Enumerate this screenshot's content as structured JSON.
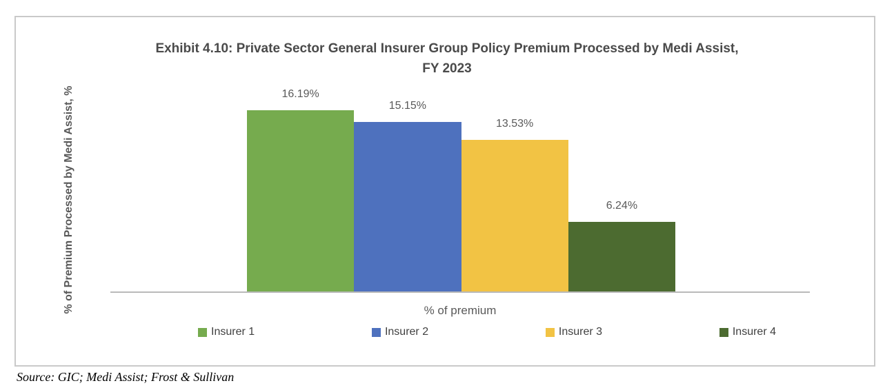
{
  "chart": {
    "title_line1": "Exhibit 4.10: Private Sector General Insurer Group Policy Premium Processed by Medi Assist,",
    "title_line2": "FY 2023",
    "y_axis_label": "% of Premium Processed by Medi Assist, %",
    "x_axis_label": "% of premium",
    "source": "Source: GIC; Medi Assist; Frost & Sullivan"
  },
  "chart_data": {
    "type": "bar",
    "title": "Exhibit 4.10: Private Sector General Insurer Group Policy Premium Processed by Medi Assist, FY 2023",
    "categories": [
      "% of premium"
    ],
    "series": [
      {
        "name": "Insurer 1",
        "values": [
          16.19
        ],
        "data_label": "16.19%",
        "color": "#76AB4E"
      },
      {
        "name": "Insurer 2",
        "values": [
          15.15
        ],
        "data_label": "15.15%",
        "color": "#4E71BE"
      },
      {
        "name": "Insurer 3",
        "values": [
          13.53
        ],
        "data_label": "13.53%",
        "color": "#F2C344"
      },
      {
        "name": "Insurer 4",
        "values": [
          6.24
        ],
        "data_label": "6.24%",
        "color": "#4C6B30"
      }
    ],
    "xlabel": "% of premium",
    "ylabel": "% of Premium Processed by Medi Assist, %",
    "ylim": [
      0,
      18
    ],
    "value_suffix": "%",
    "data_labels_shown": true,
    "grid": false,
    "legend_position": "bottom",
    "axis_line_color": "#B9B9B9",
    "border_color": "#C9C9C9",
    "text_colors": {
      "title": "#4A4A4A",
      "labels": "#595959",
      "legend": "#3F3F3F"
    }
  }
}
